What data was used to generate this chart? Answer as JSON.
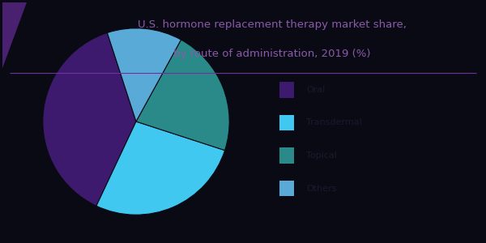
{
  "title_line1": "U.S. hormone replacement therapy market share,",
  "title_line2": "by route of administration, 2019 (%)",
  "slices": [
    38.0,
    27.0,
    22.0,
    13.0
  ],
  "labels": [
    "Oral",
    "Transdermal",
    "Topical",
    "Others"
  ],
  "colors": [
    "#3d1a6e",
    "#40c8f0",
    "#2a8a8a",
    "#5aaad8"
  ],
  "background_color": "#0a0a14",
  "title_color": "#8b5aaa",
  "legend_text_color": "#0a0a14",
  "title_fontsize": 9.5,
  "legend_fontsize": 8,
  "startangle": 108,
  "accent_color": "#4a2070",
  "line_color": "#7030a0"
}
